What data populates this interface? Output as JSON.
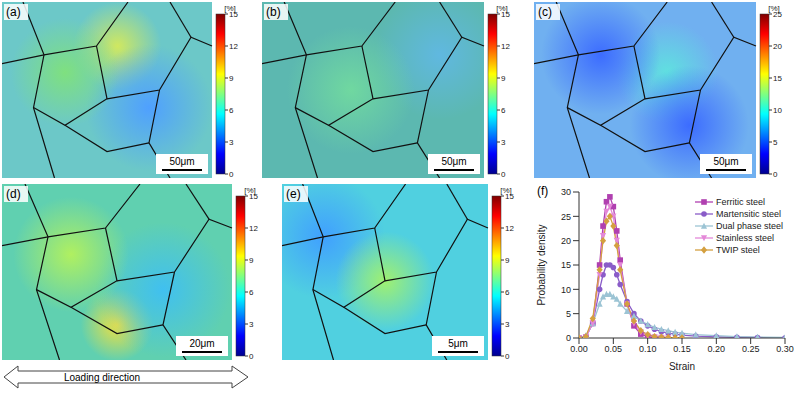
{
  "panels": [
    {
      "label": "(a)",
      "colorbar": {
        "unit": "[%]",
        "range": [
          0,
          15
        ],
        "ticks": [
          0,
          3,
          6,
          9,
          12,
          15
        ]
      },
      "scale_bar": "50μm"
    },
    {
      "label": "(b)",
      "colorbar": {
        "unit": "[%]",
        "range": [
          0,
          15
        ],
        "ticks": [
          0,
          3,
          6,
          9,
          12,
          15
        ]
      },
      "scale_bar": "50μm"
    },
    {
      "label": "(c)",
      "colorbar": {
        "unit": "[%]",
        "range": [
          0,
          25
        ],
        "ticks": [
          0,
          5,
          10,
          15,
          20,
          25
        ]
      },
      "scale_bar": "50μm"
    },
    {
      "label": "(d)",
      "colorbar": {
        "unit": "[%]",
        "range": [
          0,
          15
        ],
        "ticks": [
          0,
          3,
          6,
          9,
          12,
          15
        ]
      },
      "scale_bar": "20μm"
    },
    {
      "label": "(e)",
      "colorbar": {
        "unit": "[%]",
        "range": [
          0,
          15
        ],
        "ticks": [
          0,
          3,
          6,
          9,
          12,
          15
        ]
      },
      "scale_bar": "5μm"
    }
  ],
  "annotation": "Loading direction",
  "chart_data": {
    "type": "line",
    "panel_label": "(f)",
    "x_label": "Strain",
    "y_label": "Probability density",
    "x": [
      0,
      0.01,
      0.02,
      0.03,
      0.035,
      0.04,
      0.045,
      0.05,
      0.055,
      0.06,
      0.07,
      0.08,
      0.09,
      0.1,
      0.11,
      0.12,
      0.13,
      0.14,
      0.15,
      0.17,
      0.2,
      0.23,
      0.26,
      0.3
    ],
    "series": [
      {
        "name": "Ferritic steel",
        "color": "#b040b0",
        "marker": "square",
        "values": [
          0,
          0.2,
          3,
          15,
          23,
          28,
          29,
          27,
          22,
          16,
          7,
          2.5,
          0.8,
          0.3,
          0.1,
          0,
          null,
          null,
          null,
          null,
          null,
          null,
          null,
          null
        ]
      },
      {
        "name": "Martensitic steel",
        "color": "#8a5cc8",
        "marker": "circle",
        "values": [
          0,
          0.3,
          3,
          10,
          13,
          15,
          15,
          14.5,
          13,
          11,
          7.5,
          5,
          3.5,
          2.5,
          1.8,
          1.3,
          1,
          0.8,
          0.6,
          0.4,
          0.25,
          0.15,
          0.1,
          0
        ]
      },
      {
        "name": "Dual phase steel",
        "color": "#9cc4d4",
        "marker": "triangle",
        "values": [
          0,
          0.5,
          3,
          7,
          8.5,
          9,
          9,
          8.5,
          8,
          7,
          5.5,
          4.5,
          3.5,
          2.8,
          2.2,
          1.8,
          1.5,
          1.2,
          1,
          0.7,
          0.5,
          0.3,
          0.2,
          0.1
        ]
      },
      {
        "name": "Stainless steel",
        "color": "#e488d8",
        "marker": "triangle-down",
        "values": [
          0,
          0.2,
          3,
          13,
          21,
          26,
          27,
          25,
          20,
          15,
          7,
          3,
          1.2,
          0.5,
          0.2,
          0.1,
          0,
          null,
          null,
          null,
          null,
          null,
          null,
          null
        ]
      },
      {
        "name": "TWIP steel",
        "color": "#d4a040",
        "marker": "diamond",
        "values": [
          0,
          0.3,
          4,
          14,
          20,
          24,
          25,
          23,
          19,
          14,
          7,
          3.5,
          1.5,
          0.7,
          0.3,
          0.2,
          0.1,
          0.05,
          0,
          null,
          null,
          null,
          null,
          null
        ]
      }
    ],
    "xlim": [
      0,
      0.3
    ],
    "ylim": [
      0,
      30
    ],
    "xticks": [
      {
        "value": 0,
        "label": "0.00"
      },
      {
        "value": 0.05,
        "label": "0.05"
      },
      {
        "value": 0.1,
        "label": "0.10"
      },
      {
        "value": 0.15,
        "label": "0.15"
      },
      {
        "value": 0.2,
        "label": "0.20"
      },
      {
        "value": 0.25,
        "label": "0.25"
      },
      {
        "value": 0.3,
        "label": "0.30"
      }
    ],
    "yticks": [
      0,
      5,
      10,
      15,
      20,
      25,
      30
    ],
    "legend": "upper right"
  }
}
